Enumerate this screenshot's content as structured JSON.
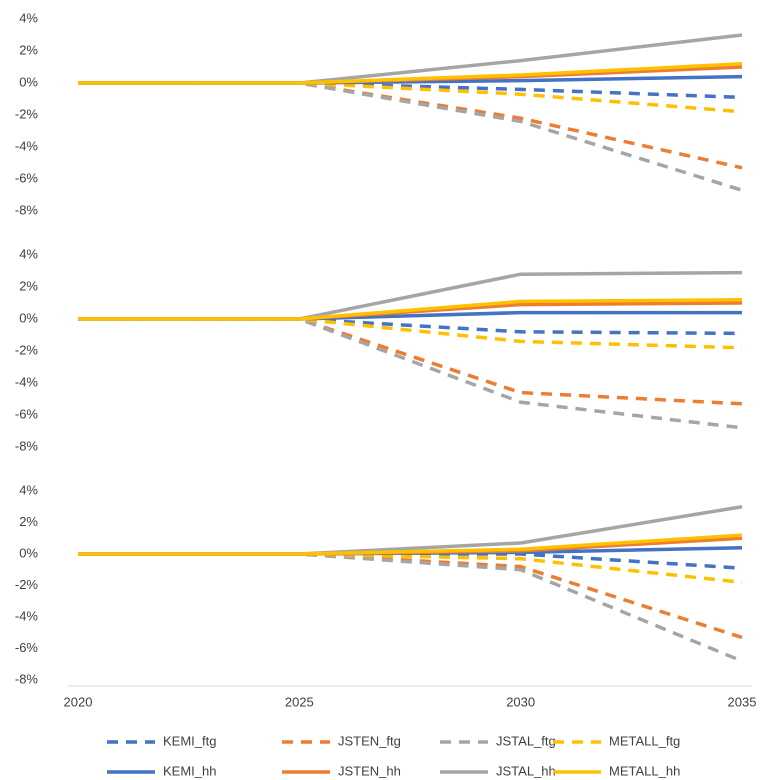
{
  "chart_data": [
    {
      "type": "line",
      "x": [
        2020,
        2025,
        2030,
        2035
      ],
      "xlim": [
        2020,
        2035
      ],
      "ylim": [
        -8,
        4
      ],
      "yticks": [
        {
          "value": -8,
          "label": "-8%"
        },
        {
          "value": -6,
          "label": "-6%"
        },
        {
          "value": -4,
          "label": "-4%"
        },
        {
          "value": -2,
          "label": "-2%"
        },
        {
          "value": 0,
          "label": "0%"
        },
        {
          "value": 2,
          "label": "2%"
        },
        {
          "value": 4,
          "label": "4%"
        }
      ],
      "series": [
        {
          "name": "KEMI_ftg",
          "color": "#4472c4",
          "style": "dashed",
          "values": [
            0,
            0,
            -0.4,
            -0.9
          ]
        },
        {
          "name": "JSTEN_ftg",
          "color": "#ed7d31",
          "style": "dashed",
          "values": [
            0,
            0,
            -2.2,
            -5.3
          ]
        },
        {
          "name": "JSTAL_ftg",
          "color": "#a5a5a5",
          "style": "dashed",
          "values": [
            0,
            0,
            -2.4,
            -6.7
          ]
        },
        {
          "name": "METALL_ftg",
          "color": "#ffc000",
          "style": "dashed",
          "values": [
            0,
            0,
            -0.7,
            -1.8
          ]
        },
        {
          "name": "KEMI_hh",
          "color": "#4472c4",
          "style": "solid",
          "values": [
            0,
            0,
            0.15,
            0.4
          ]
        },
        {
          "name": "JSTEN_hh",
          "color": "#ed7d31",
          "style": "solid",
          "values": [
            0,
            0,
            0.4,
            1.0
          ]
        },
        {
          "name": "JSTAL_hh",
          "color": "#a5a5a5",
          "style": "solid",
          "values": [
            0,
            0,
            1.4,
            3.0
          ]
        },
        {
          "name": "METALL_hh",
          "color": "#ffc000",
          "style": "solid",
          "values": [
            0,
            0,
            0.5,
            1.2
          ]
        }
      ]
    },
    {
      "type": "line",
      "x": [
        2020,
        2025,
        2030,
        2035
      ],
      "xlim": [
        2020,
        2035
      ],
      "ylim": [
        -8,
        4
      ],
      "yticks": [
        {
          "value": -8,
          "label": "-8%"
        },
        {
          "value": -6,
          "label": "-6%"
        },
        {
          "value": -4,
          "label": "-4%"
        },
        {
          "value": -2,
          "label": "-2%"
        },
        {
          "value": 0,
          "label": "0%"
        },
        {
          "value": 2,
          "label": "2%"
        },
        {
          "value": 4,
          "label": "4%"
        }
      ],
      "series": [
        {
          "name": "KEMI_ftg",
          "color": "#4472c4",
          "style": "dashed",
          "values": [
            0,
            0,
            -0.8,
            -0.9
          ]
        },
        {
          "name": "JSTEN_ftg",
          "color": "#ed7d31",
          "style": "dashed",
          "values": [
            0,
            0,
            -4.6,
            -5.3
          ]
        },
        {
          "name": "JSTAL_ftg",
          "color": "#a5a5a5",
          "style": "dashed",
          "values": [
            0,
            0,
            -5.2,
            -6.8
          ]
        },
        {
          "name": "METALL_ftg",
          "color": "#ffc000",
          "style": "dashed",
          "values": [
            0,
            0,
            -1.4,
            -1.8
          ]
        },
        {
          "name": "KEMI_hh",
          "color": "#4472c4",
          "style": "solid",
          "values": [
            0,
            0,
            0.4,
            0.4
          ]
        },
        {
          "name": "JSTEN_hh",
          "color": "#ed7d31",
          "style": "solid",
          "values": [
            0,
            0,
            0.9,
            1.0
          ]
        },
        {
          "name": "JSTAL_hh",
          "color": "#a5a5a5",
          "style": "solid",
          "values": [
            0,
            0,
            2.8,
            2.9
          ]
        },
        {
          "name": "METALL_hh",
          "color": "#ffc000",
          "style": "solid",
          "values": [
            0,
            0,
            1.1,
            1.2
          ]
        }
      ]
    },
    {
      "type": "line",
      "x": [
        2020,
        2025,
        2030,
        2035
      ],
      "xlim": [
        2020,
        2035
      ],
      "xticks": [
        2020,
        2025,
        2030,
        2035
      ],
      "ylim": [
        -8,
        4
      ],
      "yticks": [
        {
          "value": -8,
          "label": "-8%"
        },
        {
          "value": -6,
          "label": "-6%"
        },
        {
          "value": -4,
          "label": "-4%"
        },
        {
          "value": -2,
          "label": "-2%"
        },
        {
          "value": 0,
          "label": "0%"
        },
        {
          "value": 2,
          "label": "2%"
        },
        {
          "value": 4,
          "label": "4%"
        }
      ],
      "series": [
        {
          "name": "KEMI_ftg",
          "color": "#4472c4",
          "style": "dashed",
          "values": [
            0,
            0,
            0,
            -0.9
          ]
        },
        {
          "name": "JSTEN_ftg",
          "color": "#ed7d31",
          "style": "dashed",
          "values": [
            0,
            0,
            -0.8,
            -5.3
          ]
        },
        {
          "name": "JSTAL_ftg",
          "color": "#a5a5a5",
          "style": "dashed",
          "values": [
            0,
            0,
            -1.0,
            -6.8
          ]
        },
        {
          "name": "METALL_ftg",
          "color": "#ffc000",
          "style": "dashed",
          "values": [
            0,
            0,
            -0.3,
            -1.8
          ]
        },
        {
          "name": "KEMI_hh",
          "color": "#4472c4",
          "style": "solid",
          "values": [
            0,
            0,
            0.1,
            0.4
          ]
        },
        {
          "name": "JSTEN_hh",
          "color": "#ed7d31",
          "style": "solid",
          "values": [
            0,
            0,
            0.2,
            1.0
          ]
        },
        {
          "name": "JSTAL_hh",
          "color": "#a5a5a5",
          "style": "solid",
          "values": [
            0,
            0,
            0.7,
            3.0
          ]
        },
        {
          "name": "METALL_hh",
          "color": "#ffc000",
          "style": "solid",
          "values": [
            0,
            0,
            0.3,
            1.2
          ]
        }
      ]
    }
  ]
}
